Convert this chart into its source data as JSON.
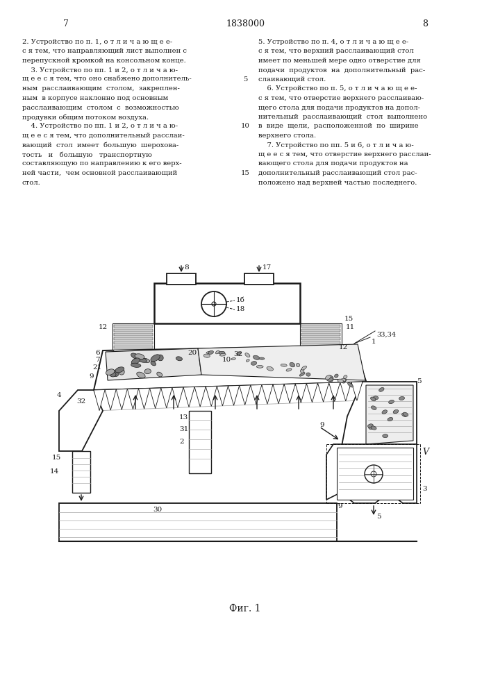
{
  "page_left": "7",
  "page_center": "1838000",
  "page_right": "8",
  "background": "#ffffff",
  "ink": "#1a1a1a",
  "gray": "#aaaaaa",
  "figure_caption": "Фиг. 1",
  "fig_width": 7.07,
  "fig_height": 10.0,
  "dpi": 100,
  "col1": [
    "2. Устройство по п. 1, о т л и ч а ю щ е е-",
    "с я тем, что направляющий лист выполнен с",
    "перепускной кромкой на консольном конце.",
    "    3. Устройство по пп. 1 и 2, о т л и ч а ю-",
    "щ е е с я тем, что оно снабжено дополнитель-",
    "ным  расслаивающим  столом,  закреплен-",
    "ным  в корпусе наклонно под основным",
    "расслаивающим  столом  с  возможностью",
    "продувки общим потоком воздуха.",
    "    4. Устройство по пп. 1 и 2, о т л и ч а ю-",
    "щ е е с я тем, что дополнительный расслаи-",
    "вающий  стол  имеет  большую  шерохова-",
    "тость   и   большую   транспортную",
    "составляющую по направлению к его верх-",
    "ней части,  чем основной расслаивающий",
    "стол."
  ],
  "col2": [
    "5. Устройство по п. 4, о т л и ч а ю щ е е-",
    "с я тем, что верхний расслаивающий стол",
    "имеет по меньшей мере одно отверстие для",
    "подачи  продуктов  на  дополнительный  рас-",
    "слаивающий стол.",
    "    6. Устройство по п. 5, о т л и ч а ю щ е е-",
    "с я тем, что отверстие верхнего расслаиваю-",
    "щего стола для подачи продуктов на допол-",
    "нительный  расслаивающий  стол  выполнено",
    "в  виде  щели,  расположенной  по  ширине",
    "верхнего стола.",
    "    7. Устройство по пп. 5 и 6, о т л и ч а ю-",
    "щ е е с я тем, что отверстие верхнего расслаи-",
    "вающего стола для подачи продуктов на",
    "дополнительный расслаивающий стол рас-",
    "положено над верхней частью последнего."
  ],
  "line_num_indices": [
    4,
    9,
    14
  ],
  "line_num_values": [
    "5",
    "10",
    "15"
  ]
}
